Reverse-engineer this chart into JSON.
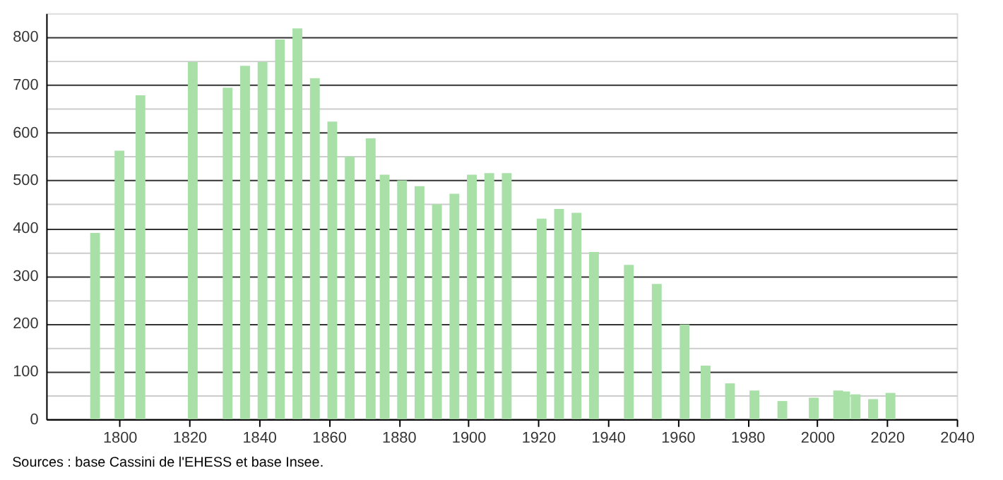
{
  "chart_data": {
    "type": "bar",
    "x": [
      1793,
      1800,
      1806,
      1821,
      1831,
      1836,
      1841,
      1846,
      1851,
      1856,
      1861,
      1866,
      1872,
      1876,
      1881,
      1886,
      1891,
      1896,
      1901,
      1906,
      1911,
      1921,
      1926,
      1931,
      1936,
      1946,
      1954,
      1962,
      1968,
      1975,
      1982,
      1990,
      1999,
      2006,
      2008,
      2011,
      2016,
      2021
    ],
    "series": [
      {
        "color": "#a8e0a8",
        "values": [
          390,
          562,
          678,
          748,
          694,
          740,
          748,
          795,
          818,
          714,
          623,
          550,
          588,
          512,
          500,
          488,
          450,
          472,
          512,
          515,
          515,
          420,
          440,
          432,
          350,
          323,
          283,
          198,
          112,
          75,
          60,
          38,
          45,
          60,
          58,
          52,
          42,
          55
        ]
      }
    ],
    "xlim": [
      1779,
      2040
    ],
    "xticks": [
      1800,
      1820,
      1840,
      1860,
      1880,
      1900,
      1920,
      1940,
      1960,
      1980,
      2000,
      2020,
      2040
    ],
    "ylim": [
      0,
      850
    ],
    "yticks": [
      0,
      {
        "value": 50,
        "label": null
      },
      100,
      {
        "value": 150,
        "label": null
      },
      200,
      {
        "value": 250,
        "label": null
      },
      300,
      {
        "value": 350,
        "label": null
      },
      400,
      {
        "value": 450,
        "label": null
      },
      500,
      {
        "value": 550,
        "label": null
      },
      600,
      {
        "value": 650,
        "label": null
      },
      700,
      {
        "value": 750,
        "label": null
      },
      800
    ],
    "grid": "y",
    "annotations": [
      "Sources : base Cassini de l'EHESS et base Insee."
    ]
  }
}
